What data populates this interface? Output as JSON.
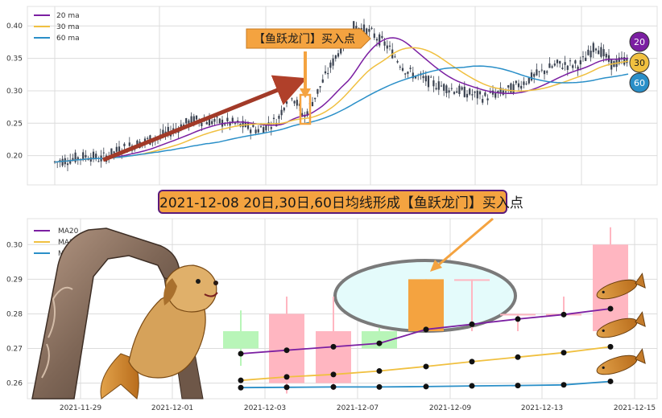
{
  "chart_data": [
    {
      "type": "candlestick",
      "title": "",
      "xlabel": "",
      "ylabel": "",
      "ylim": [
        0.155,
        0.43
      ],
      "yticks": [
        "0.20",
        "0.25",
        "0.30",
        "0.35",
        "0.40"
      ],
      "legend_placement": "top-left",
      "grid": true,
      "series": [
        {
          "name": "20 ma",
          "color": "#7b1fa2"
        },
        {
          "name": "30 ma",
          "color": "#f0c040"
        },
        {
          "name": "60 ma",
          "color": "#2a8fc8"
        }
      ],
      "signal_label": "【鱼跃龙门】买入点",
      "ma_badges": [
        "20",
        "30",
        "60"
      ],
      "price_range_overview": {
        "start_level": 0.19,
        "low": 0.175,
        "peak_level": 0.42,
        "end_level": 0.35
      }
    },
    {
      "type": "candlestick",
      "title": "2021-12-08 20日,30日,60日均线形成【鱼跃龙门】买入点",
      "xlabel": "",
      "ylabel": "",
      "ylim": [
        0.2555,
        0.3075
      ],
      "yticks": [
        "0.26",
        "0.27",
        "0.28",
        "0.29",
        "0.30"
      ],
      "xticks": [
        "2021-11-29",
        "2021-12-01",
        "2021-12-03",
        "2021-12-07",
        "2021-12-09",
        "2021-12-13",
        "2021-12-15"
      ],
      "legend_placement": "top-left",
      "grid": true,
      "categories": [
        "2021-12-02",
        "2021-12-03",
        "2021-12-06",
        "2021-12-07",
        "2021-12-08",
        "2021-12-09",
        "2021-12-10",
        "2021-12-13",
        "2021-12-14"
      ],
      "candles": [
        {
          "open": 0.275,
          "close": 0.27,
          "high": 0.281,
          "low": 0.265,
          "color": "#b8f5b8"
        },
        {
          "open": 0.26,
          "close": 0.28,
          "high": 0.285,
          "low": 0.257,
          "color": "#ffb6c1"
        },
        {
          "open": 0.26,
          "close": 0.275,
          "high": 0.285,
          "low": 0.258,
          "color": "#ffb6c1"
        },
        {
          "open": 0.275,
          "close": 0.27,
          "high": 0.276,
          "low": 0.27,
          "color": "#b8f5b8"
        },
        {
          "open": 0.275,
          "close": 0.29,
          "high": 0.29,
          "low": 0.275,
          "color": "#f4a340"
        },
        {
          "open": 0.29,
          "close": 0.29,
          "high": 0.29,
          "low": 0.275,
          "color": "#ffb6c1"
        },
        {
          "open": 0.28,
          "close": 0.28,
          "high": 0.28,
          "low": 0.275,
          "color": "#ffb6c1"
        },
        {
          "open": 0.28,
          "close": 0.28,
          "high": 0.285,
          "low": 0.28,
          "color": "#ffb6c1"
        },
        {
          "open": 0.275,
          "close": 0.3,
          "high": 0.305,
          "low": 0.275,
          "color": "#ffb6c1"
        }
      ],
      "series": [
        {
          "name": "MA20",
          "color": "#7b1fa2",
          "values": [
            0.2685,
            0.2695,
            0.2705,
            0.2715,
            0.2755,
            0.277,
            0.2785,
            0.2798,
            0.2815
          ]
        },
        {
          "name": "MA30",
          "color": "#f0c040",
          "values": [
            0.2608,
            0.2618,
            0.2625,
            0.2635,
            0.2648,
            0.2662,
            0.2675,
            0.2688,
            0.2705
          ]
        },
        {
          "name": "MA60",
          "color": "#2a8fc8",
          "values": [
            0.2587,
            0.2588,
            0.2589,
            0.2589,
            0.259,
            0.2592,
            0.2593,
            0.2595,
            0.2605
          ]
        }
      ]
    }
  ]
}
